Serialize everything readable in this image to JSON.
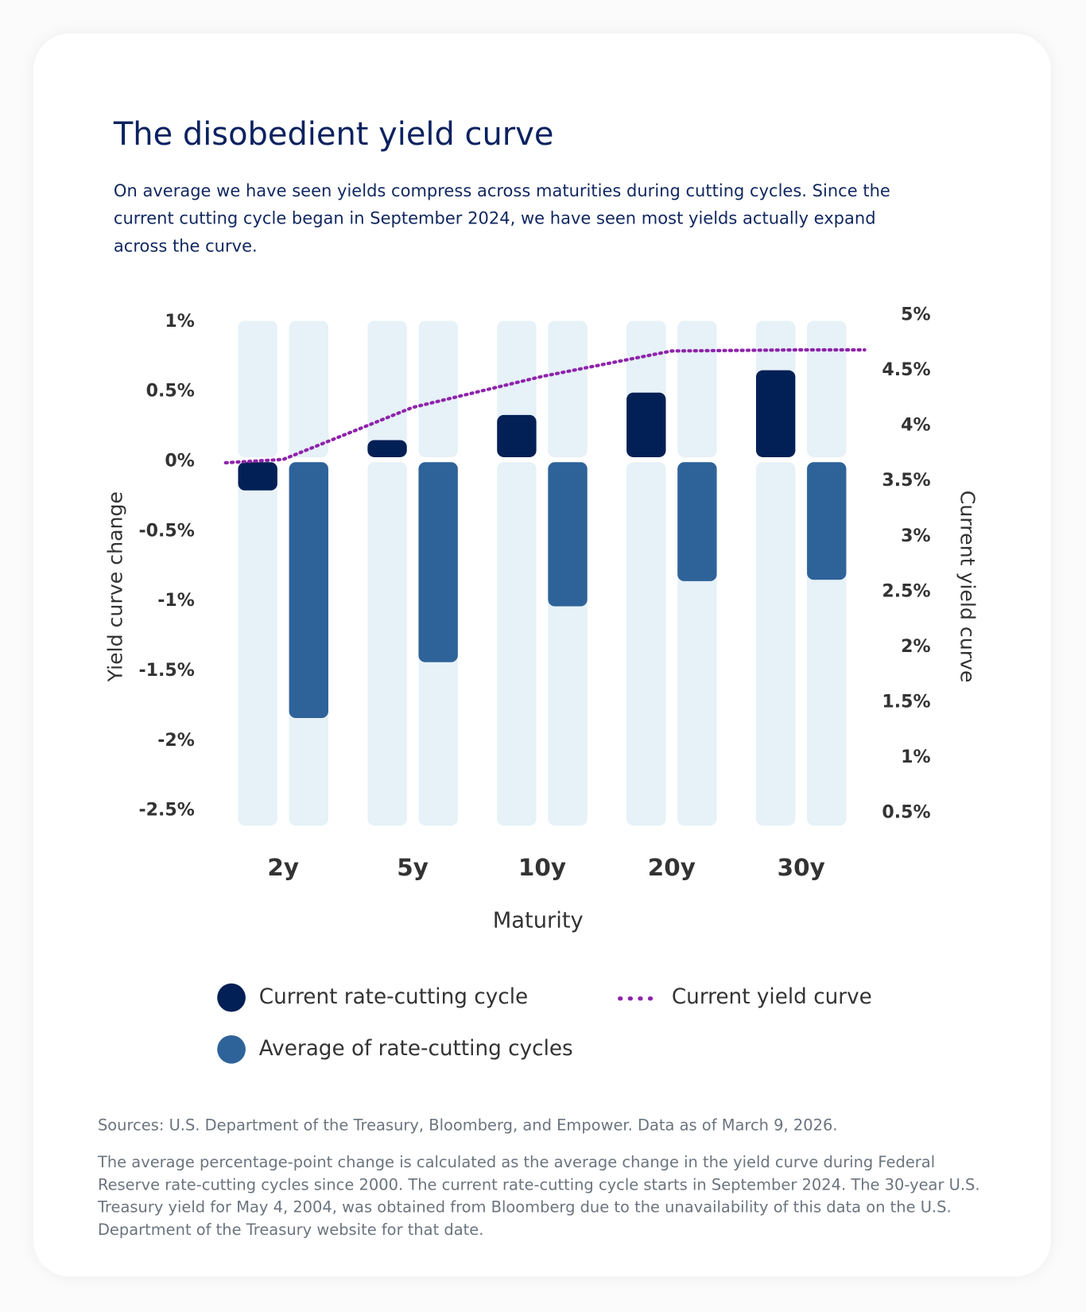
{
  "title": "The disobedient yield curve",
  "description": "On average we have seen yields compress across maturities during cutting cycles. Since the current cutting cycle began in September 2024, we have seen most yields actually expand across the curve.",
  "chart_data": {
    "type": "bar",
    "categories": [
      "2y",
      "5y",
      "10y",
      "20y",
      "30y"
    ],
    "xlabel": "Maturity",
    "ylabel": "Yield curve change",
    "ylabel_right": "Current yield curve",
    "ylim": [
      -2.5,
      1
    ],
    "ylim_right": [
      0.5,
      5
    ],
    "yticks": [
      "1%",
      "0.5%",
      "0%",
      "-0.5%",
      "-1%",
      "-1.5%",
      "-2%",
      "-2.5%"
    ],
    "yticks_right": [
      "5%",
      "4.5%",
      "4%",
      "3.5%",
      "3%",
      "2.5%",
      "2%",
      "1.5%",
      "1%",
      "0.5%"
    ],
    "series": [
      {
        "name": "Current rate-cutting cycle",
        "type": "bar",
        "axis": "left",
        "color": "#022055",
        "values": [
          -0.22,
          0.14,
          0.32,
          0.48,
          0.64
        ]
      },
      {
        "name": "Average of rate-cutting cycles",
        "type": "bar",
        "axis": "left",
        "color": "#2e6399",
        "values": [
          -1.85,
          -1.45,
          -1.05,
          -0.87,
          -0.86
        ]
      },
      {
        "name": "Current yield curve",
        "type": "line",
        "style": "dotted",
        "axis": "right",
        "color": "#8e24aa",
        "values": [
          3.68,
          4.15,
          4.43,
          4.66,
          4.67
        ]
      }
    ],
    "track_color": "#e6f1f8",
    "legend": "bottom"
  },
  "sources": "Sources: U.S. Department of the Treasury, Bloomberg, and Empower. Data as of March 9, 2026.",
  "note": "The average percentage-point change is calculated as the average change in the yield curve during Federal Reserve rate-cutting cycles since 2000. The current rate-cutting cycle starts in September 2024. The 30-year U.S. Treasury yield for May 4, 2004, was obtained from Bloomberg due to the unavailability of this data on the U.S. Department of the Treasury website for that date."
}
